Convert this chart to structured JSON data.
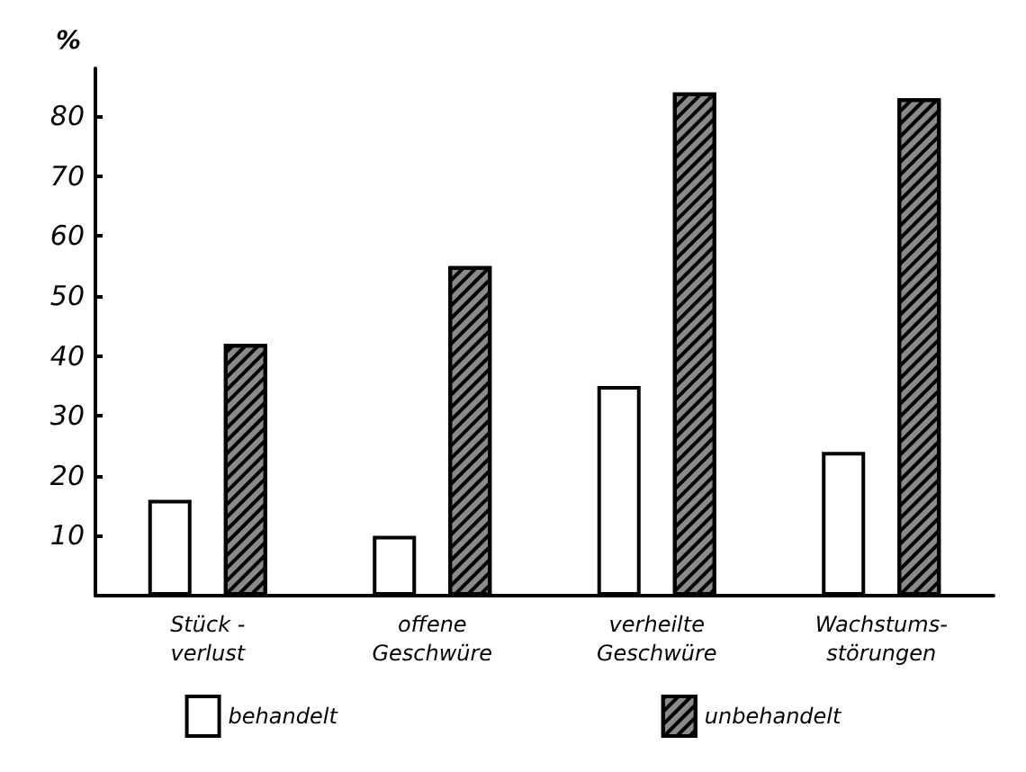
{
  "chart_data": {
    "type": "bar",
    "ylabel": "%",
    "categories": [
      "Stück -\nverlust",
      "offene\nGeschwüre",
      "verheilte\nGeschwüre",
      "Wachstums-\nstörungen"
    ],
    "series": [
      {
        "name": "behandelt",
        "color": "#ffffff",
        "values": [
          16,
          10,
          35,
          24
        ]
      },
      {
        "name": "unbehandelt",
        "color": "#8a8a8a",
        "values": [
          42,
          55,
          84,
          83
        ]
      }
    ],
    "ylim": [
      0,
      88
    ],
    "yticks": [
      10,
      20,
      30,
      40,
      50,
      60,
      70,
      80
    ],
    "grid": false,
    "legend": "bottom"
  }
}
